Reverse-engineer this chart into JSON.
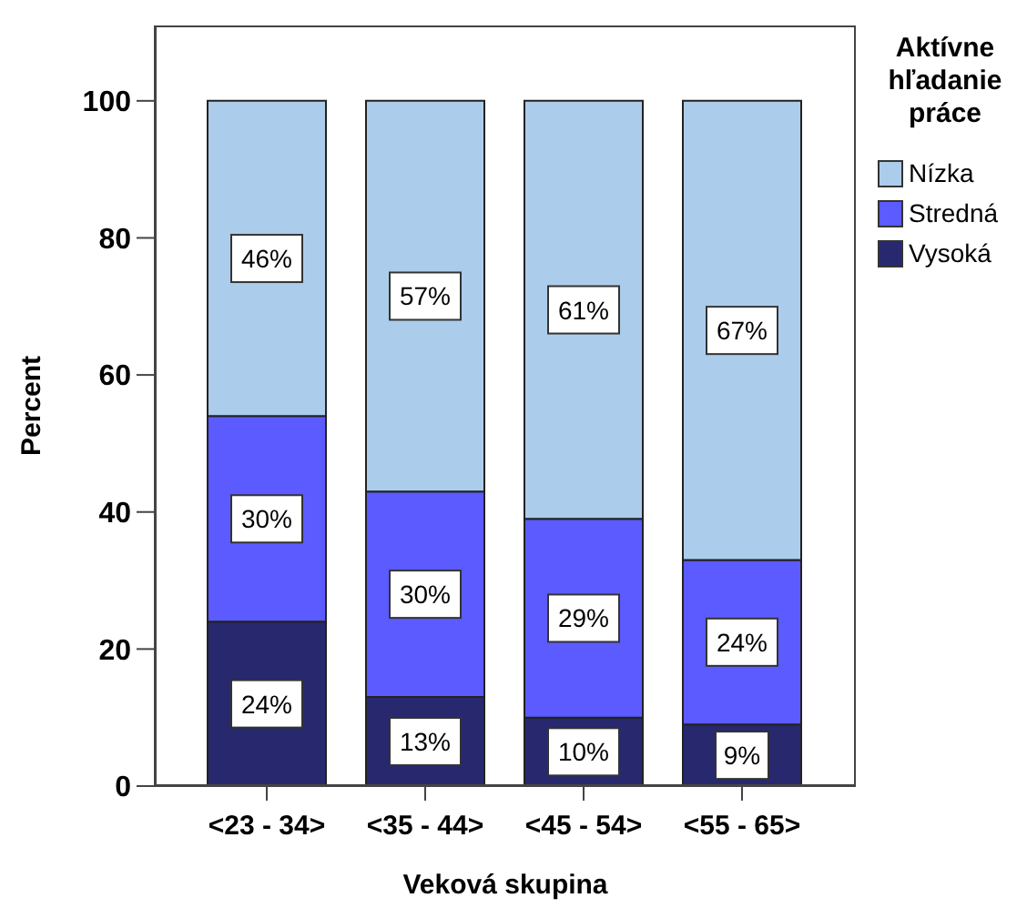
{
  "chart_data": {
    "type": "bar",
    "stacked": true,
    "xlabel": "Veková skupina",
    "ylabel": "Percent",
    "legend_title": "Aktívne hľadanie práce",
    "legend": "right",
    "categories": [
      "<23 - 34>",
      "<35 - 44>",
      "<45 - 54>",
      "<55 - 65>"
    ],
    "series": [
      {
        "name": "Vysoká",
        "color": "#28286f",
        "values": [
          24,
          13,
          10,
          9
        ],
        "value_labels": [
          "24%",
          "13%",
          "10%",
          "9%"
        ]
      },
      {
        "name": "Stredná",
        "color": "#5b5bff",
        "values": [
          30,
          30,
          29,
          24
        ],
        "value_labels": [
          "30%",
          "30%",
          "29%",
          "24%"
        ]
      },
      {
        "name": "Nízka",
        "color": "#abcdeb",
        "values": [
          46,
          57,
          61,
          67
        ],
        "value_labels": [
          "46%",
          "57%",
          "61%",
          "67%"
        ]
      }
    ],
    "ylim": [
      0,
      111
    ],
    "yticks": [
      0,
      20,
      40,
      60,
      80,
      100
    ]
  }
}
